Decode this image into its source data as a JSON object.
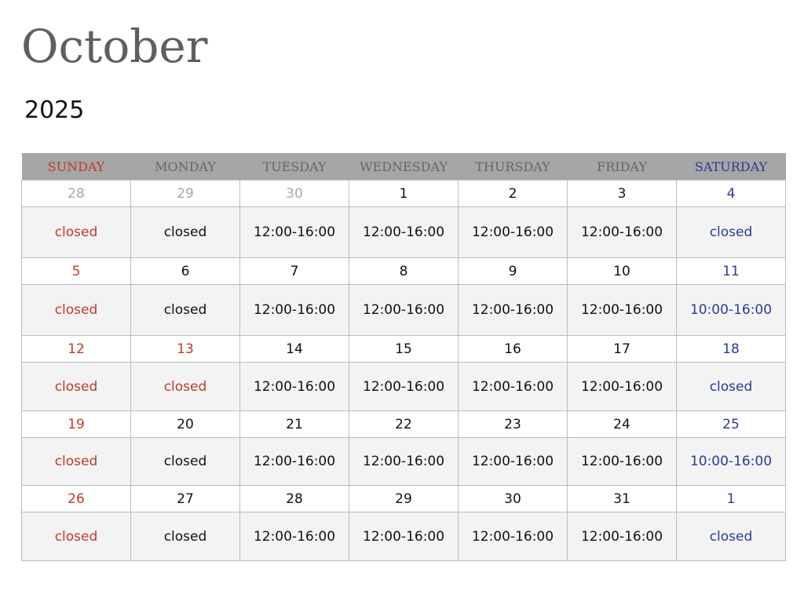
{
  "month": "October",
  "year": "2025",
  "colors": {
    "red": "#c0392b",
    "blue": "#2b3a98",
    "grey": "#a8a8a8",
    "black": "#111111",
    "header_bg": "#a6a6a6"
  },
  "weekdays": [
    {
      "label": "SUNDAY",
      "color": "red"
    },
    {
      "label": "MONDAY",
      "color": "grey-dark"
    },
    {
      "label": "TUESDAY",
      "color": "grey-dark"
    },
    {
      "label": "WEDNESDAY",
      "color": "grey-dark"
    },
    {
      "label": "THURSDAY",
      "color": "grey-dark"
    },
    {
      "label": "FRIDAY",
      "color": "grey-dark"
    },
    {
      "label": "SATURDAY",
      "color": "blue"
    }
  ],
  "weeks": [
    {
      "days": [
        {
          "date": "28",
          "color": "grey",
          "hours": "closed",
          "hours_color": "red"
        },
        {
          "date": "29",
          "color": "grey",
          "hours": "closed",
          "hours_color": "black"
        },
        {
          "date": "30",
          "color": "grey",
          "hours": "12:00-16:00",
          "hours_color": "black"
        },
        {
          "date": "1",
          "color": "black",
          "hours": "12:00-16:00",
          "hours_color": "black"
        },
        {
          "date": "2",
          "color": "black",
          "hours": "12:00-16:00",
          "hours_color": "black"
        },
        {
          "date": "3",
          "color": "black",
          "hours": "12:00-16:00",
          "hours_color": "black"
        },
        {
          "date": "4",
          "color": "blue",
          "hours": "closed",
          "hours_color": "blue"
        }
      ]
    },
    {
      "days": [
        {
          "date": "5",
          "color": "red",
          "hours": "closed",
          "hours_color": "red"
        },
        {
          "date": "6",
          "color": "black",
          "hours": "closed",
          "hours_color": "black"
        },
        {
          "date": "7",
          "color": "black",
          "hours": "12:00-16:00",
          "hours_color": "black"
        },
        {
          "date": "8",
          "color": "black",
          "hours": "12:00-16:00",
          "hours_color": "black"
        },
        {
          "date": "9",
          "color": "black",
          "hours": "12:00-16:00",
          "hours_color": "black"
        },
        {
          "date": "10",
          "color": "black",
          "hours": "12:00-16:00",
          "hours_color": "black"
        },
        {
          "date": "11",
          "color": "blue",
          "hours": "10:00-16:00",
          "hours_color": "blue"
        }
      ]
    },
    {
      "days": [
        {
          "date": "12",
          "color": "red",
          "hours": "closed",
          "hours_color": "red"
        },
        {
          "date": "13",
          "color": "red",
          "hours": "closed",
          "hours_color": "red"
        },
        {
          "date": "14",
          "color": "black",
          "hours": "12:00-16:00",
          "hours_color": "black"
        },
        {
          "date": "15",
          "color": "black",
          "hours": "12:00-16:00",
          "hours_color": "black"
        },
        {
          "date": "16",
          "color": "black",
          "hours": "12:00-16:00",
          "hours_color": "black"
        },
        {
          "date": "17",
          "color": "black",
          "hours": "12:00-16:00",
          "hours_color": "black"
        },
        {
          "date": "18",
          "color": "blue",
          "hours": "closed",
          "hours_color": "blue"
        }
      ]
    },
    {
      "days": [
        {
          "date": "19",
          "color": "red",
          "hours": "closed",
          "hours_color": "red"
        },
        {
          "date": "20",
          "color": "black",
          "hours": "closed",
          "hours_color": "black"
        },
        {
          "date": "21",
          "color": "black",
          "hours": "12:00-16:00",
          "hours_color": "black"
        },
        {
          "date": "22",
          "color": "black",
          "hours": "12:00-16:00",
          "hours_color": "black"
        },
        {
          "date": "23",
          "color": "black",
          "hours": "12:00-16:00",
          "hours_color": "black"
        },
        {
          "date": "24",
          "color": "black",
          "hours": "12:00-16:00",
          "hours_color": "black"
        },
        {
          "date": "25",
          "color": "blue",
          "hours": "10:00-16:00",
          "hours_color": "blue"
        }
      ]
    },
    {
      "days": [
        {
          "date": "26",
          "color": "red",
          "hours": "closed",
          "hours_color": "red"
        },
        {
          "date": "27",
          "color": "black",
          "hours": "closed",
          "hours_color": "black"
        },
        {
          "date": "28",
          "color": "black",
          "hours": "12:00-16:00",
          "hours_color": "black"
        },
        {
          "date": "29",
          "color": "black",
          "hours": "12:00-16:00",
          "hours_color": "black"
        },
        {
          "date": "30",
          "color": "black",
          "hours": "12:00-16:00",
          "hours_color": "black"
        },
        {
          "date": "31",
          "color": "black",
          "hours": "12:00-16:00",
          "hours_color": "black"
        },
        {
          "date": "1",
          "color": "blue",
          "hours": "closed",
          "hours_color": "blue"
        }
      ]
    }
  ]
}
